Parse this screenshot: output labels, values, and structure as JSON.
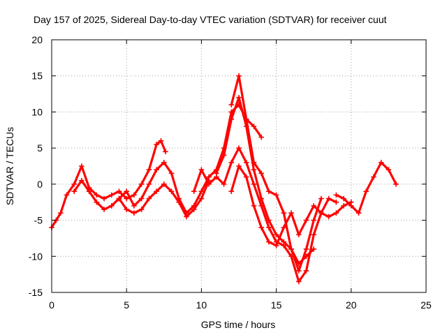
{
  "chart_data": {
    "type": "scatter",
    "title": "Day 157 of 2025, Sidereal Day-to-day VTEC variation (SDTVAR) for receiver cuut",
    "xlabel": "GPS time / hours",
    "ylabel": "SDTVAR / TECUs",
    "xlim": [
      0,
      25
    ],
    "ylim": [
      -15,
      20
    ],
    "x_ticks": [
      0,
      5,
      10,
      15,
      20,
      25
    ],
    "y_ticks": [
      -15,
      -10,
      -5,
      0,
      5,
      10,
      15,
      20
    ],
    "x_tick_labels": [
      "0",
      "5",
      "10",
      "15",
      "20",
      "25"
    ],
    "y_tick_labels": [
      "-15",
      "-10",
      "-5",
      "0",
      "5",
      "10",
      "15",
      "20"
    ],
    "grid": true,
    "marker": "plus",
    "color": "#ff0000",
    "series": [
      {
        "name": "satellite-track-1",
        "x": [
          0,
          0.3,
          0.6,
          1.0,
          1.5,
          2.0,
          2.5,
          3.0,
          3.5,
          4.0,
          4.5,
          5.0,
          5.5,
          6.0,
          6.5,
          7.0,
          7.3,
          7.6
        ],
        "y": [
          -6,
          -5,
          -4,
          -1.5,
          0,
          2.5,
          -0.5,
          -1.5,
          -2,
          -1.5,
          -1,
          -2,
          -1.5,
          0,
          2,
          5.5,
          6,
          4.5
        ]
      },
      {
        "name": "satellite-track-2",
        "x": [
          4.0,
          4.5,
          5.0,
          5.5,
          6.0,
          6.5,
          7.0,
          7.5,
          8.0,
          8.5,
          9.0,
          9.5,
          10.0,
          10.5,
          11.0,
          11.5,
          12.0,
          12.5,
          13.0,
          13.5,
          14.0
        ],
        "y": [
          -3,
          -2,
          -1,
          -3,
          -2,
          0,
          2,
          3,
          1.5,
          -2,
          -4,
          -3,
          -1,
          1,
          2,
          5,
          10,
          11,
          9,
          8,
          6.5
        ]
      },
      {
        "name": "satellite-track-3",
        "x": [
          1.5,
          2.0,
          2.5,
          3.0,
          3.5,
          4.0,
          4.5,
          5.0,
          5.5,
          6.0,
          6.5,
          7.0,
          7.5,
          8.0,
          8.5,
          9.0,
          9.5,
          10.0,
          10.5
        ],
        "y": [
          -1,
          0.5,
          -1,
          -2.5,
          -3.5,
          -3,
          -2,
          -3.5,
          -4,
          -3.5,
          -2,
          -1,
          0,
          -1,
          -2.5,
          -4.5,
          -3.5,
          -2,
          0.5
        ]
      },
      {
        "name": "satellite-track-4",
        "x": [
          11.0,
          11.5,
          12.0,
          12.5,
          13.0,
          13.5,
          14.0,
          14.5,
          15.0,
          15.5,
          16.0,
          16.5,
          17.0,
          17.5
        ],
        "y": [
          1.5,
          4,
          9,
          12,
          8,
          2,
          -2,
          -5,
          -7,
          -8,
          -9,
          -11,
          -10,
          -9
        ]
      },
      {
        "name": "satellite-track-5",
        "x": [
          9.5,
          10.0,
          10.5,
          11.0,
          11.5,
          12.0,
          12.5,
          13.0,
          13.5,
          14.0,
          14.5,
          15.0,
          15.5,
          16.0,
          16.5,
          17.0,
          17.5,
          18.0,
          18.5,
          19.0,
          19.5,
          20.0
        ],
        "y": [
          -1,
          2,
          0,
          1,
          0,
          3,
          5,
          3,
          0,
          -3,
          -6,
          -8,
          -8.5,
          -10,
          -13.5,
          -12,
          -7,
          -4,
          -4.5,
          -4,
          -3,
          -2.5
        ]
      },
      {
        "name": "satellite-track-6",
        "x": [
          12.0,
          12.5,
          13.0,
          13.5,
          14.0,
          14.5,
          15.0,
          15.5,
          16.0,
          16.5,
          17.0,
          17.5,
          18.0,
          18.5,
          19.0
        ],
        "y": [
          -1,
          2.5,
          1,
          -3,
          -6,
          -8,
          -8.5,
          -6,
          -4,
          -7,
          -5,
          -3,
          -4,
          -2,
          -2.5
        ]
      },
      {
        "name": "satellite-track-7",
        "x": [
          12.0,
          12.5,
          13.0,
          13.5,
          14.0,
          14.5,
          15.0,
          15.5,
          16.0,
          16.5,
          17.0,
          17.5,
          18.0
        ],
        "y": [
          11,
          15,
          9,
          3,
          1.5,
          -1,
          -1.5,
          -4,
          -9,
          -12,
          -9,
          -5,
          -2
        ]
      },
      {
        "name": "satellite-track-8",
        "x": [
          19.0,
          19.5,
          20.0,
          20.5,
          21.0,
          21.5,
          22.0,
          22.5,
          23.0
        ],
        "y": [
          -1.5,
          -2,
          -3,
          -4,
          -1,
          1,
          3,
          2,
          0
        ]
      }
    ]
  }
}
